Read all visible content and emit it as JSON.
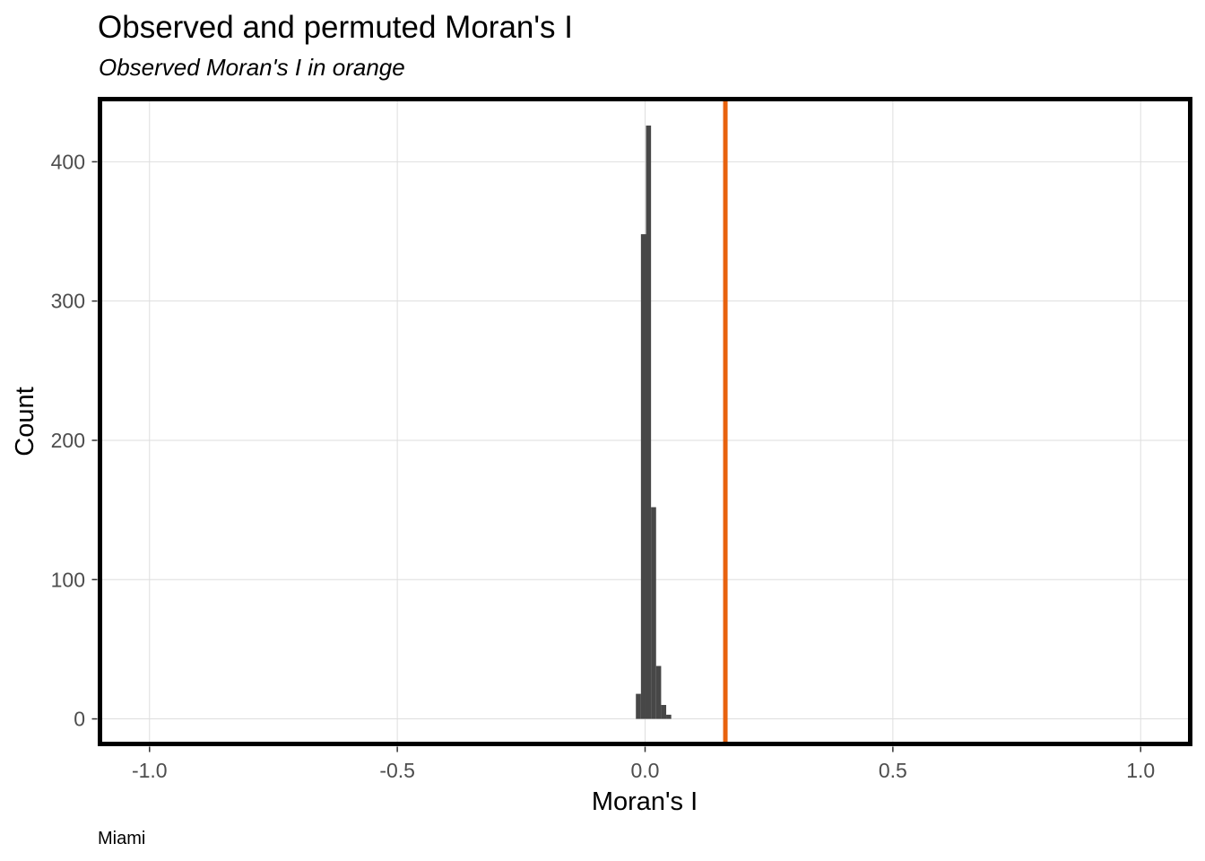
{
  "chart_data": {
    "type": "bar",
    "title": "Observed and permuted Moran's I",
    "subtitle": "Observed Moran's I in orange",
    "caption": "Miami",
    "xlabel": "Moran's I",
    "ylabel": "Count",
    "xlim": [
      -1.1,
      1.1
    ],
    "ylim": [
      -18,
      445
    ],
    "x_ticks": [
      -1.0,
      -0.5,
      0.0,
      0.5,
      1.0
    ],
    "x_tick_labels": [
      "-1.0",
      "-0.5",
      "0.0",
      "0.5",
      "1.0"
    ],
    "y_ticks": [
      0,
      100,
      200,
      300,
      400
    ],
    "y_tick_labels": [
      "0",
      "100",
      "200",
      "300",
      "400"
    ],
    "grid": true,
    "bin_width": 0.0102,
    "bins": [
      {
        "x": -0.0135,
        "count": 18
      },
      {
        "x": -0.0033,
        "count": 348
      },
      {
        "x": 0.0069,
        "count": 426
      },
      {
        "x": 0.0171,
        "count": 152
      },
      {
        "x": 0.0273,
        "count": 38
      },
      {
        "x": 0.0375,
        "count": 10
      },
      {
        "x": 0.0477,
        "count": 3
      }
    ],
    "bar_color": "#474747",
    "observed": 0.162,
    "observed_color": "#e8620e"
  }
}
